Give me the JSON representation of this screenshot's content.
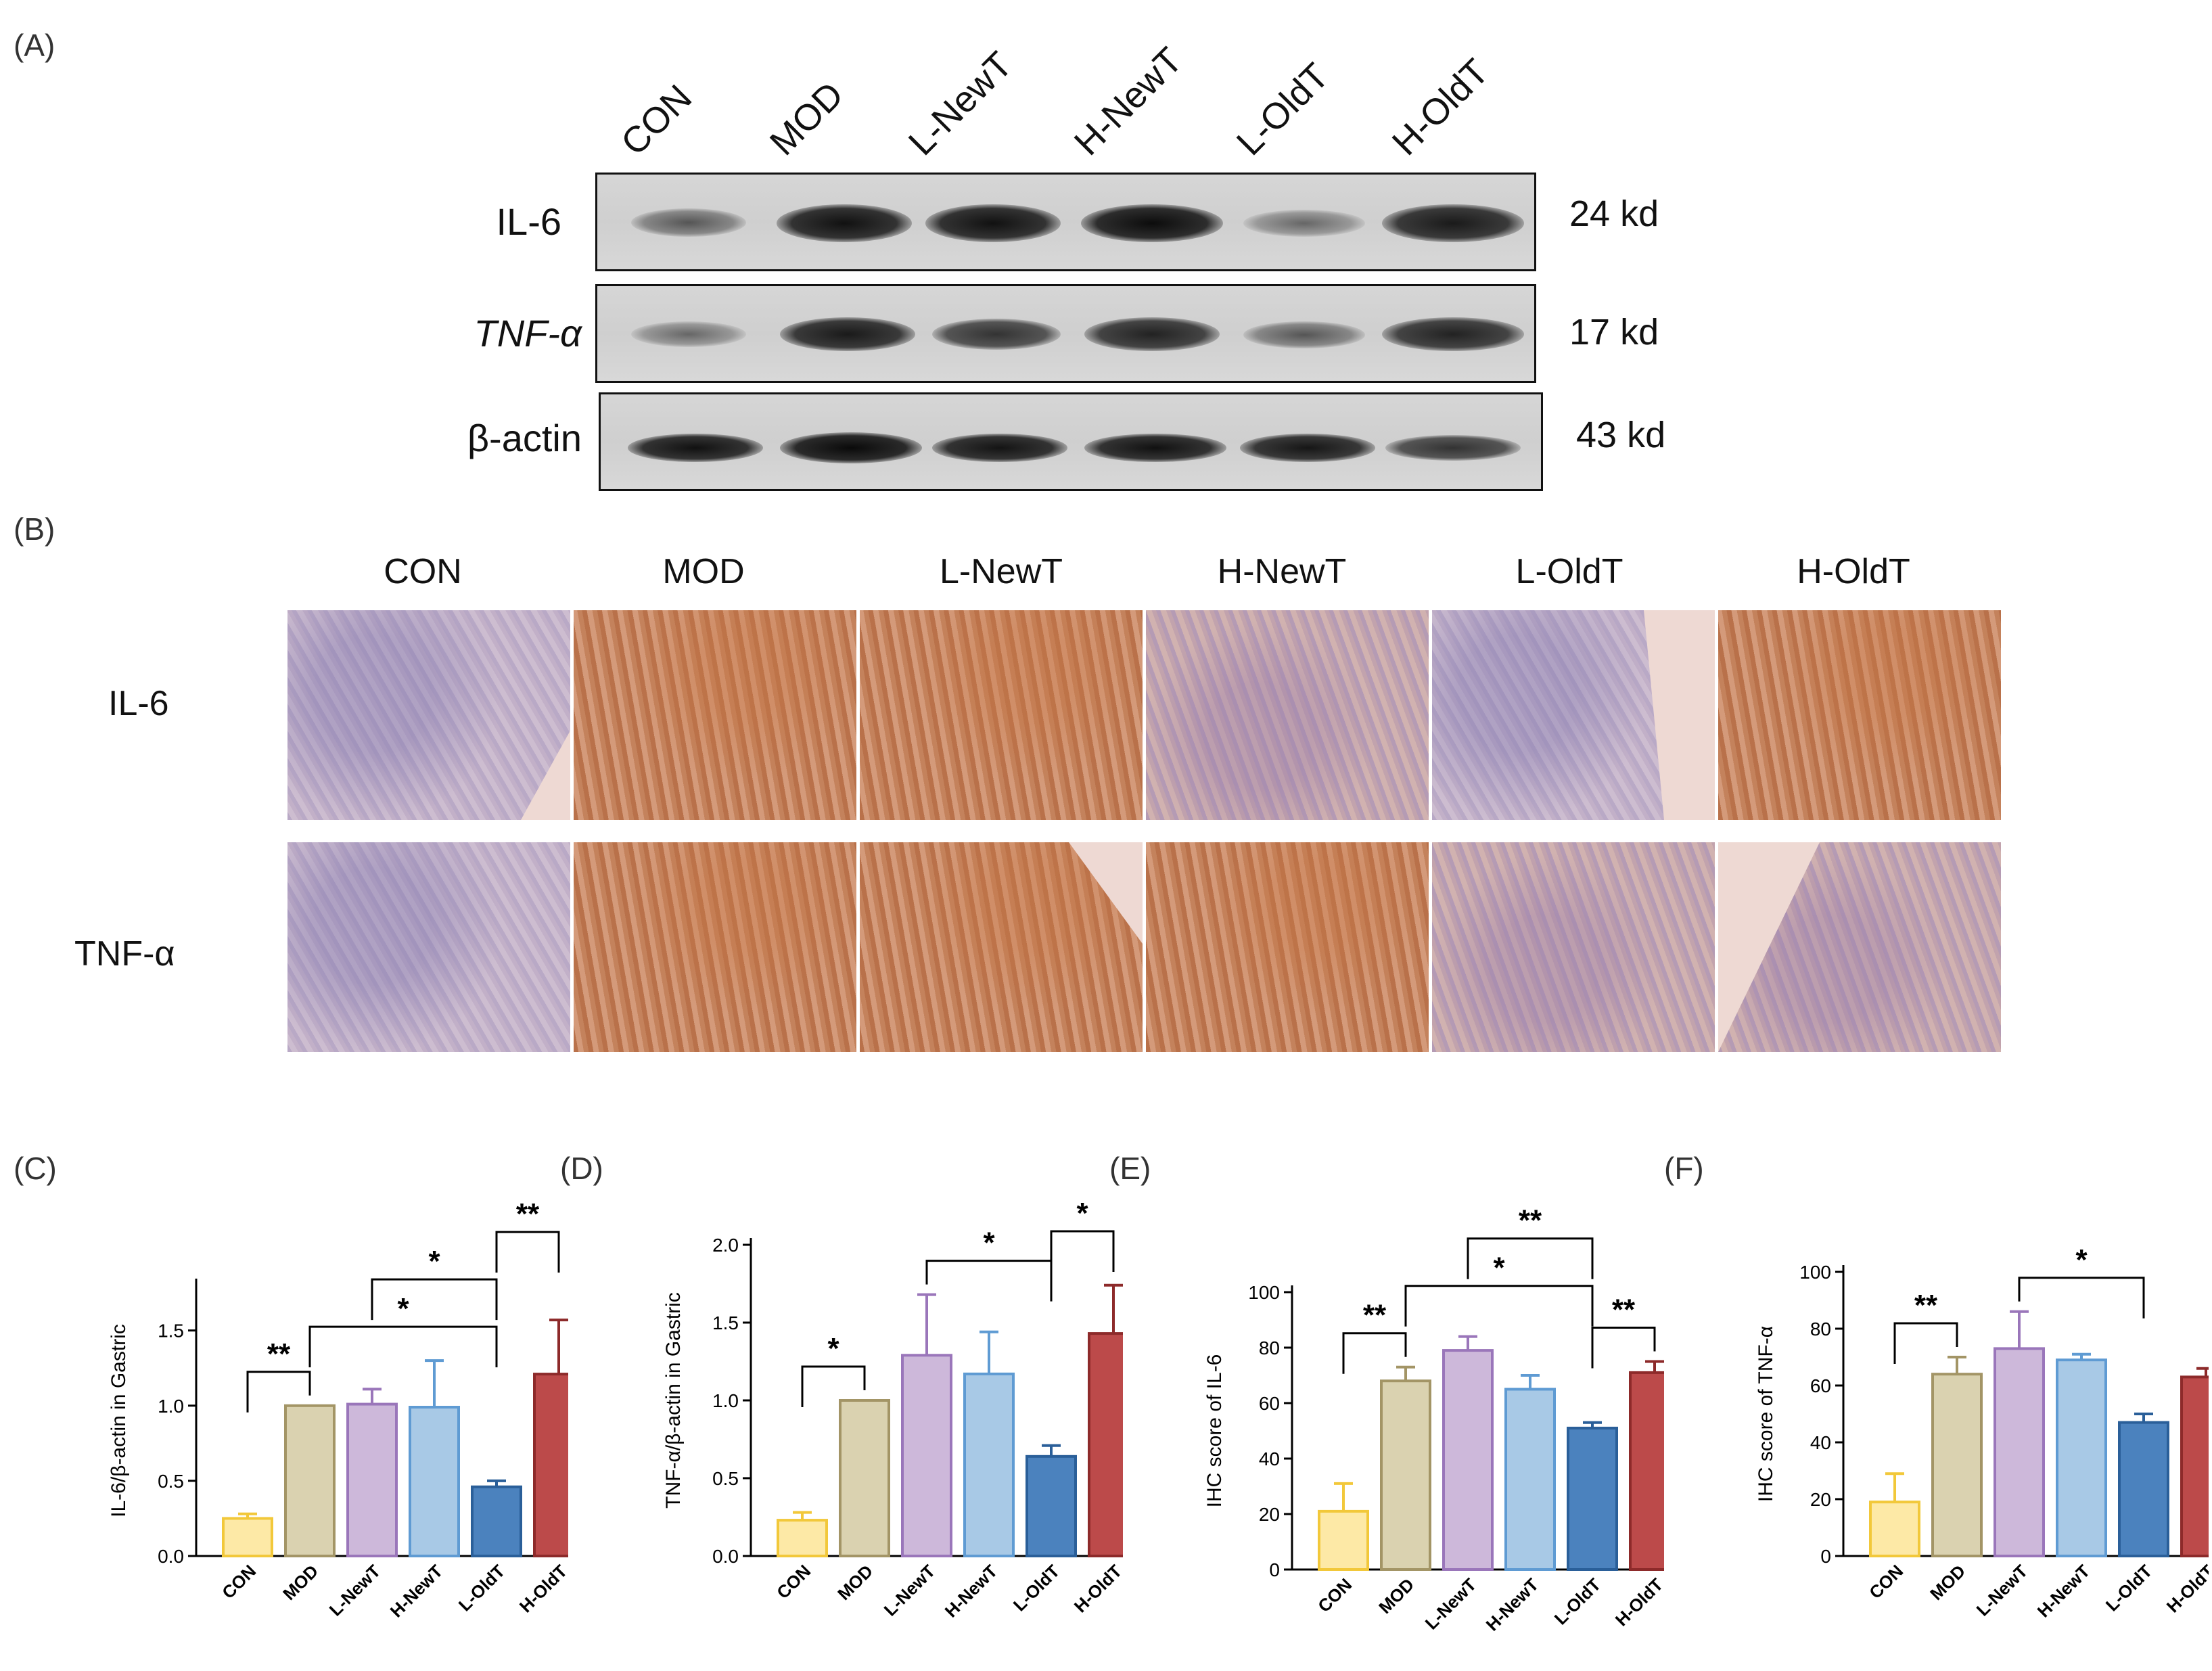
{
  "panels": {
    "A": "(A)",
    "B": "(B)",
    "C": "(C)",
    "D": "(D)",
    "E": "(E)",
    "F": "(F)"
  },
  "blot": {
    "lanes": [
      "CON",
      "MOD",
      "L-NewT",
      "H-NewT",
      "L-OldT",
      "H-OldT"
    ],
    "rows": [
      {
        "label": "IL-6",
        "kd": "24 kd"
      },
      {
        "label": "TNF-α",
        "kd": "17 kd"
      },
      {
        "label": "β-actin",
        "kd": "43 kd"
      }
    ]
  },
  "ihc": {
    "columns": [
      "CON",
      "MOD",
      "L-NewT",
      "H-NewT",
      "L-OldT",
      "H-OldT"
    ],
    "rows": [
      "IL-6",
      "TNF-α"
    ]
  },
  "chart_data": [
    {
      "id": "C",
      "type": "bar",
      "categories": [
        "CON",
        "MOD",
        "L-NewT",
        "H-NewT",
        "L-OldT",
        "H-OldT"
      ],
      "values": [
        0.25,
        1.0,
        1.01,
        0.99,
        0.46,
        1.21
      ],
      "errors": [
        0.03,
        0.0,
        0.1,
        0.31,
        0.04,
        0.36
      ],
      "ylabel": "IL-6/β-actin in Gastric",
      "ylim": [
        0,
        1.8
      ],
      "yticks": [
        0.0,
        0.5,
        1.0,
        1.5
      ],
      "yticklabels": [
        "0.0",
        "0.5",
        "1.0",
        "1.5"
      ],
      "significance": [
        {
          "from": 0,
          "to": 1,
          "label": "**"
        },
        {
          "from": 1,
          "to": 4,
          "label": "*"
        },
        {
          "from": 2,
          "to": 4,
          "label": "*"
        },
        {
          "from": 4,
          "to": 5,
          "label": "**"
        }
      ]
    },
    {
      "id": "D",
      "type": "bar",
      "categories": [
        "CON",
        "MOD",
        "L-NewT",
        "H-NewT",
        "L-OldT",
        "H-OldT"
      ],
      "values": [
        0.23,
        1.0,
        1.29,
        1.17,
        0.64,
        1.43
      ],
      "errors": [
        0.05,
        0.0,
        0.39,
        0.27,
        0.07,
        0.31
      ],
      "ylabel": "TNF-α/β-actin in Gastric",
      "ylim": [
        0,
        2.0
      ],
      "yticks": [
        0.0,
        0.5,
        1.0,
        1.5,
        2.0
      ],
      "yticklabels": [
        "0.0",
        "0.5",
        "1.0",
        "1.5",
        "2.0"
      ],
      "significance": [
        {
          "from": 0,
          "to": 1,
          "label": "*"
        },
        {
          "from": 2,
          "to": 4,
          "label": "*"
        },
        {
          "from": 4,
          "to": 5,
          "label": "*"
        }
      ]
    },
    {
      "id": "E",
      "type": "bar",
      "categories": [
        "CON",
        "MOD",
        "L-NewT",
        "H-NewT",
        "L-OldT",
        "H-OldT"
      ],
      "values": [
        21,
        68,
        79,
        65,
        51,
        71
      ],
      "errors": [
        10,
        5,
        5,
        5,
        2,
        4
      ],
      "ylabel": "IHC score of IL-6",
      "ylim": [
        0,
        100
      ],
      "yticks": [
        0,
        20,
        40,
        60,
        80,
        100
      ],
      "yticklabels": [
        "0",
        "20",
        "40",
        "60",
        "80",
        "100"
      ],
      "significance": [
        {
          "from": 0,
          "to": 1,
          "label": "**"
        },
        {
          "from": 1,
          "to": 4,
          "label": "*"
        },
        {
          "from": 2,
          "to": 4,
          "label": "**"
        },
        {
          "from": 4,
          "to": 5,
          "label": "**"
        }
      ]
    },
    {
      "id": "F",
      "type": "bar",
      "categories": [
        "CON",
        "MOD",
        "L-NewT",
        "H-NewT",
        "L-OldT",
        "H-OldT"
      ],
      "values": [
        19,
        64,
        73,
        69,
        47,
        63
      ],
      "errors": [
        10,
        6,
        13,
        2,
        3,
        3
      ],
      "ylabel": "IHC score of TNF-α",
      "ylim": [
        0,
        100
      ],
      "yticks": [
        0,
        20,
        40,
        60,
        80,
        100
      ],
      "yticklabels": [
        "0",
        "20",
        "40",
        "60",
        "80",
        "100"
      ],
      "significance": [
        {
          "from": 0,
          "to": 1,
          "label": "**"
        },
        {
          "from": 2,
          "to": 4,
          "label": "*"
        }
      ]
    }
  ],
  "colors": {
    "fills": [
      "#fde9a6",
      "#dad2b0",
      "#cdb8da",
      "#a8c9e6",
      "#4b82be",
      "#bc4a4a"
    ],
    "edges": [
      "#f2c83a",
      "#a39566",
      "#9a76ba",
      "#5f9bd3",
      "#2a5f99",
      "#8d2a2a"
    ]
  }
}
